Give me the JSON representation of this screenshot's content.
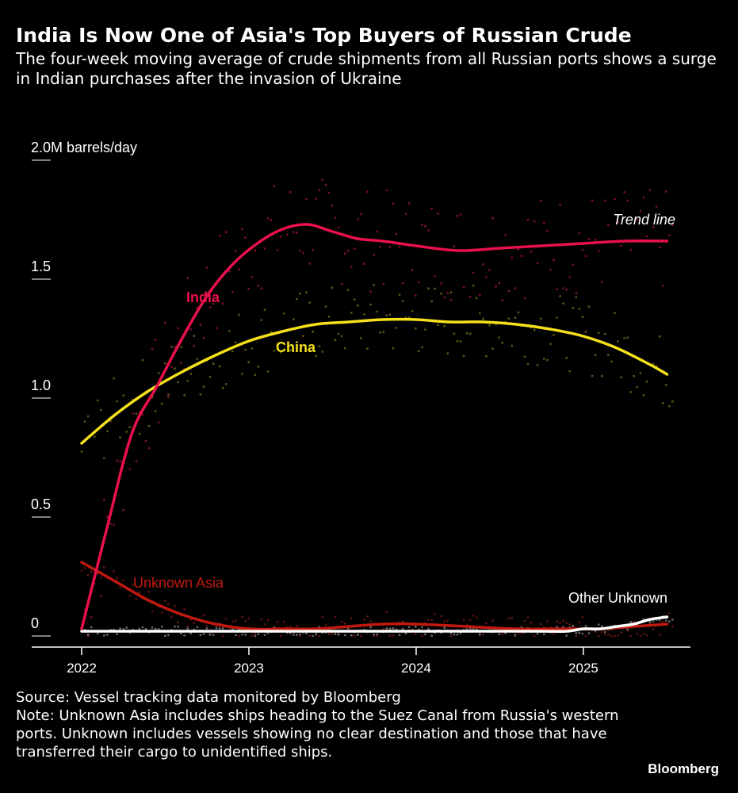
{
  "header": {
    "title": "India Is Now One of Asia's Top Buyers of Russian Crude",
    "subtitle": "The four-week moving average of crude shipments from all Russian ports shows a surge in Indian purchases after the invasion of Ukraine"
  },
  "footer": {
    "source": "Source: Vessel tracking data monitored by Bloomberg",
    "note": "Note: Unknown Asia includes ships heading to the Suez Canal from Russia's western ports. Unknown includes vessels showing no clear destination and those that have transferred their cargo to unidentified ships.",
    "brand": "Bloomberg"
  },
  "chart_data": {
    "type": "line",
    "title": "India Is Now One of Asia's Top Buyers of Russian Crude",
    "ylabel": "2.0M barrels/day",
    "ylim": [
      0,
      2.0
    ],
    "xlim": [
      2022.0,
      2025.55
    ],
    "y_ticks": [
      {
        "value": 0,
        "label": "0"
      },
      {
        "value": 0.5,
        "label": "0.5"
      },
      {
        "value": 1.0,
        "label": "1.0"
      },
      {
        "value": 1.5,
        "label": "1.5"
      },
      {
        "value": 2.0,
        "label": "2.0M barrels/day"
      }
    ],
    "x_ticks": [
      {
        "value": 2022,
        "label": "2022"
      },
      {
        "value": 2023,
        "label": "2023"
      },
      {
        "value": 2024,
        "label": "2024"
      },
      {
        "value": 2025,
        "label": "2025"
      }
    ],
    "legend_label": "Trend line",
    "series": [
      {
        "name": "India",
        "label": "India",
        "color": "#e8114b",
        "x": [
          2022.0,
          2022.15,
          2022.3,
          2022.45,
          2022.6,
          2022.75,
          2022.9,
          2023.05,
          2023.2,
          2023.35,
          2023.5,
          2023.65,
          2023.8,
          2024.0,
          2024.25,
          2024.5,
          2024.75,
          2025.0,
          2025.25,
          2025.5
        ],
        "y": [
          0.03,
          0.45,
          0.85,
          1.05,
          1.25,
          1.43,
          1.56,
          1.65,
          1.71,
          1.73,
          1.7,
          1.67,
          1.66,
          1.64,
          1.62,
          1.63,
          1.64,
          1.65,
          1.66,
          1.66
        ]
      },
      {
        "name": "China",
        "label": "China",
        "color": "#f5e11b",
        "x": [
          2022.0,
          2022.2,
          2022.4,
          2022.6,
          2022.8,
          2023.0,
          2023.2,
          2023.4,
          2023.6,
          2023.8,
          2024.0,
          2024.2,
          2024.4,
          2024.6,
          2024.8,
          2025.0,
          2025.2,
          2025.4,
          2025.5
        ],
        "y": [
          0.81,
          0.93,
          1.03,
          1.11,
          1.18,
          1.24,
          1.28,
          1.31,
          1.32,
          1.33,
          1.33,
          1.32,
          1.32,
          1.31,
          1.29,
          1.26,
          1.21,
          1.14,
          1.1
        ]
      },
      {
        "name": "Unknown Asia",
        "label": "Unknown Asia",
        "color": "#c1190f",
        "x": [
          2022.0,
          2022.2,
          2022.4,
          2022.6,
          2022.8,
          2023.0,
          2023.2,
          2023.4,
          2023.6,
          2023.8,
          2024.0,
          2024.3,
          2024.6,
          2024.9,
          2025.1,
          2025.3,
          2025.5
        ],
        "y": [
          0.31,
          0.23,
          0.15,
          0.09,
          0.05,
          0.03,
          0.03,
          0.03,
          0.04,
          0.05,
          0.05,
          0.04,
          0.03,
          0.03,
          0.03,
          0.04,
          0.05
        ]
      },
      {
        "name": "Other Unknown",
        "label": "Other Unknown",
        "color": "#ffffff",
        "x": [
          2022.0,
          2022.5,
          2023.0,
          2023.5,
          2024.0,
          2024.5,
          2024.75,
          2024.9,
          2025.0,
          2025.1,
          2025.2,
          2025.3,
          2025.4,
          2025.5
        ],
        "y": [
          0.02,
          0.02,
          0.02,
          0.02,
          0.02,
          0.02,
          0.02,
          0.02,
          0.03,
          0.03,
          0.04,
          0.05,
          0.07,
          0.08
        ]
      }
    ]
  }
}
